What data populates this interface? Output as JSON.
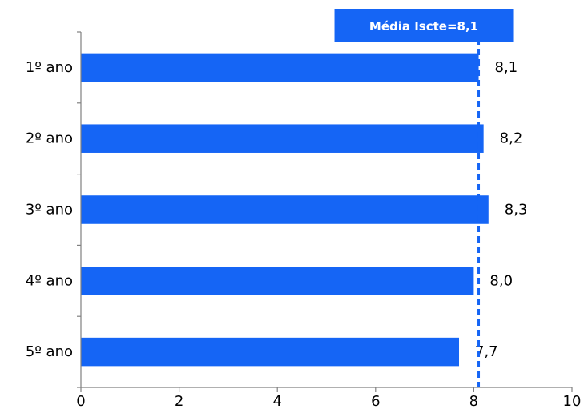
{
  "colors": {
    "bar": "#1565F5",
    "reference_line": "#1565F5",
    "reference_box": "#1565F5",
    "axis": "#808080"
  },
  "chart_data": {
    "type": "bar",
    "orientation": "horizontal",
    "categories": [
      "1º ano",
      "2º ano",
      "3º ano",
      "4º ano",
      "5º ano"
    ],
    "values": [
      8.1,
      8.2,
      8.3,
      8.0,
      7.7
    ],
    "value_labels": [
      "8,1",
      "8,2",
      "8,3",
      "8,0",
      "7,7"
    ],
    "xlim": [
      0,
      10
    ],
    "x_ticks": [
      0,
      2,
      4,
      6,
      8,
      10
    ],
    "grid": false,
    "reference_line": {
      "value": 8.1,
      "label": "Média Iscte=8,1",
      "style": "dashed"
    }
  }
}
